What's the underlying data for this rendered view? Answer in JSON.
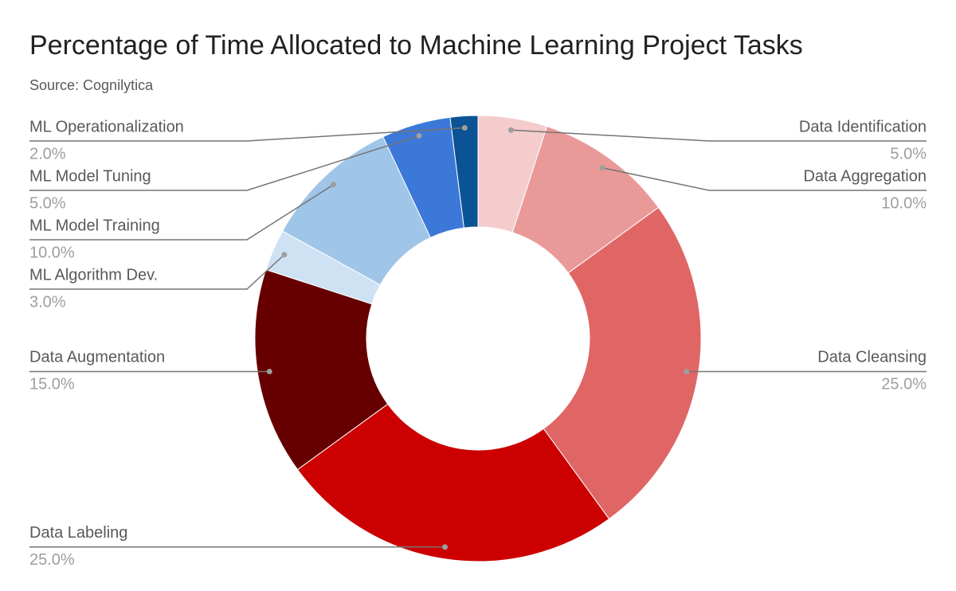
{
  "chart_data": {
    "type": "donut",
    "title": "Percentage of Time Allocated to Machine Learning Project Tasks",
    "subtitle": "Source: Cognilytica",
    "categories": [
      "Data Identification",
      "Data Aggregation",
      "Data Cleansing",
      "Data Labeling",
      "Data Augmentation",
      "ML Algorithm Dev.",
      "ML Model Training",
      "ML Model Tuning",
      "ML Operationalization"
    ],
    "values": [
      5,
      10,
      25,
      25,
      15,
      3,
      10,
      5,
      2
    ],
    "value_labels": [
      "5.0%",
      "10.0%",
      "25.0%",
      "25.0%",
      "15.0%",
      "3.0%",
      "10.0%",
      "5.0%",
      "2.0%"
    ],
    "colors": [
      "#f4cccc",
      "#ea9999",
      "#e06666",
      "#cc0000",
      "#660000",
      "#cfe2f3",
      "#9fc5e8",
      "#3c78d8",
      "#0b5394"
    ]
  }
}
